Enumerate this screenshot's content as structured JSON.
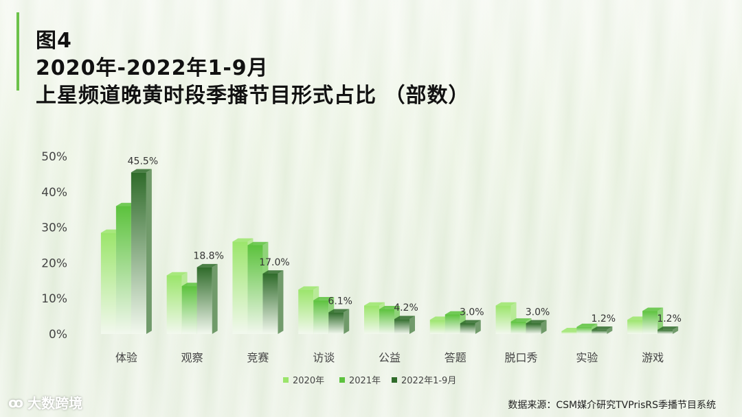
{
  "header": {
    "line1": "图4",
    "line2": "2020年-2022年1-9月",
    "line3": "上星频道晚黄时段季播节目形式占比 （部数）"
  },
  "footer": {
    "logo_text": "大数跨境",
    "source": "数据来源：CSM媒介研究TVPrisRS季播节目系统"
  },
  "colors": {
    "s2020": "#9be56b",
    "s2021": "#5cc23d",
    "s2022": "#2f6b2a",
    "accent": "#6cc24a"
  },
  "chart_data": {
    "type": "bar",
    "title": "",
    "xlabel": "",
    "ylabel": "",
    "ylim": [
      0,
      50
    ],
    "yticks": [
      "0%",
      "10%",
      "20%",
      "30%",
      "40%",
      "50%"
    ],
    "categories": [
      "体验",
      "观察",
      "竞赛",
      "访谈",
      "公益",
      "答题",
      "脱口秀",
      "实验",
      "游戏"
    ],
    "series": [
      {
        "name": "2020年",
        "values": [
          28.5,
          16.5,
          26.0,
          12.5,
          8.0,
          4.0,
          8.0,
          0.8,
          4.0
        ]
      },
      {
        "name": "2021年",
        "values": [
          36.0,
          13.5,
          25.0,
          9.5,
          7.0,
          5.5,
          3.5,
          2.0,
          6.5
        ]
      },
      {
        "name": "2022年1-9月",
        "values": [
          45.5,
          18.8,
          17.0,
          6.1,
          4.2,
          3.0,
          3.0,
          1.2,
          1.2
        ]
      }
    ],
    "data_labels": [
      "45.5%",
      "18.8%",
      "17.0%",
      "6.1%",
      "4.2%",
      "3.0%",
      "3.0%",
      "1.2%",
      "1.2%"
    ],
    "legend_position": "bottom"
  }
}
